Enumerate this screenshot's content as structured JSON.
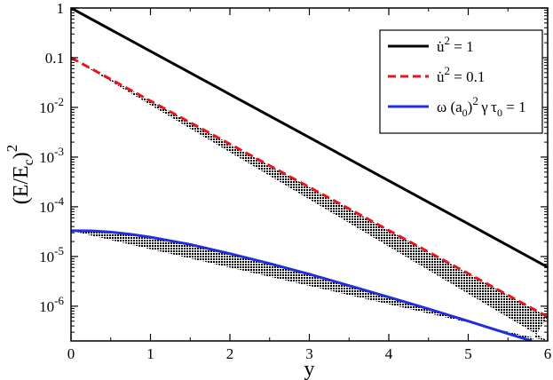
{
  "chart_data": {
    "type": "line",
    "x_axis": {
      "label": "y",
      "range": [
        0,
        6
      ],
      "ticks": [
        0,
        1,
        2,
        3,
        4,
        5,
        6
      ],
      "tick_labels": [
        "0",
        "1",
        "2",
        "3",
        "4",
        "5",
        "6"
      ]
    },
    "y_axis": {
      "label_main": "(E/E",
      "label_sub": "c",
      "label_close": ")",
      "label_sup": "2",
      "scale": "log",
      "range": [
        2e-07,
        1
      ],
      "ticks": [
        {
          "value": 1,
          "base": "1",
          "exp": ""
        },
        {
          "value": 0.1,
          "base": "0.1",
          "exp": ""
        },
        {
          "value": 0.01,
          "base": "10",
          "exp": "-2"
        },
        {
          "value": 0.001,
          "base": "10",
          "exp": "-3"
        },
        {
          "value": 0.0001,
          "base": "10",
          "exp": "-4"
        },
        {
          "value": 1e-05,
          "base": "10",
          "exp": "-5"
        },
        {
          "value": 1e-06,
          "base": "10",
          "exp": "-6"
        }
      ]
    },
    "grid": false,
    "legend_position": "top-right",
    "shaded_region": {
      "between": [
        "u2_0.1",
        "omega"
      ],
      "pattern": "black dot-hatch"
    },
    "series": [
      {
        "id": "u2_1",
        "legend": {
          "pre": "u̇",
          "sup": "2",
          "post": " = 1"
        },
        "color": "#000000",
        "style": "solid",
        "x": [
          0,
          1,
          2,
          3,
          4,
          5,
          6
        ],
        "y": [
          1,
          0.135,
          0.0183,
          0.00248,
          0.000335,
          4.54e-05,
          6.1e-06
        ]
      },
      {
        "id": "u2_0.1",
        "legend": {
          "pre": "u̇",
          "sup": "2",
          "post": " = 0.1"
        },
        "color": "#e8161b",
        "style": "dashed",
        "x": [
          0,
          1,
          2,
          3,
          4,
          5,
          6
        ],
        "y": [
          0.1,
          0.0135,
          0.00183,
          0.000248,
          3.35e-05,
          4.54e-06,
          6.1e-07
        ]
      },
      {
        "id": "omega",
        "legend_parts": [
          {
            "t": "ω (a"
          },
          {
            "t": "0",
            "sub": true
          },
          {
            "t": ")"
          },
          {
            "t": "2",
            "sup": true
          },
          {
            "t": " γ τ"
          },
          {
            "t": "0",
            "sub": true
          },
          {
            "t": " = 1"
          }
        ],
        "color": "#1f2fe0",
        "style": "solid",
        "x": [
          0,
          0.25,
          0.5,
          0.75,
          1,
          1.5,
          2,
          2.5,
          3,
          3.5,
          4,
          4.5,
          5,
          5.5,
          5.8
        ],
        "y": [
          3.3e-05,
          3.28e-05,
          3.1e-05,
          2.8e-05,
          2.45e-05,
          1.75e-05,
          1.14e-05,
          7.2e-06,
          4.4e-06,
          2.6e-06,
          1.52e-06,
          8.8e-07,
          5e-07,
          2.8e-07,
          2e-07
        ]
      }
    ]
  }
}
